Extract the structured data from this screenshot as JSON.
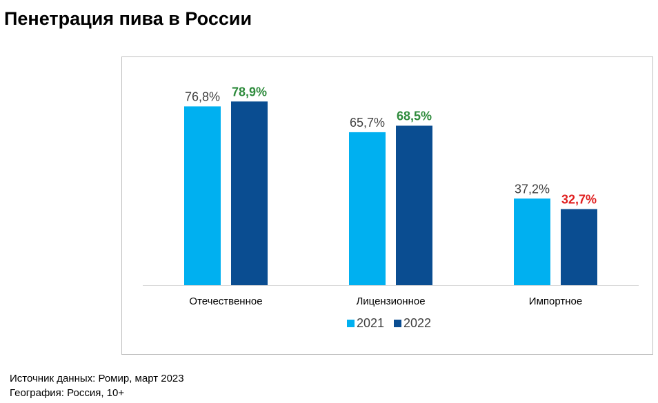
{
  "title": "Пенетрация пива в России",
  "chart_data": {
    "type": "bar",
    "categories": [
      "Отечественное",
      "Лицензионное",
      "Импортное"
    ],
    "series": [
      {
        "name": "2021",
        "color": "#00b0f0",
        "values": [
          76.8,
          65.7,
          37.2
        ],
        "labels": [
          "76,8%",
          "65,7%",
          "37,2%"
        ],
        "label_colors": [
          "#404040",
          "#404040",
          "#404040"
        ],
        "label_bold": false
      },
      {
        "name": "2022",
        "color": "#0a4d91",
        "values": [
          78.9,
          68.5,
          32.7
        ],
        "labels": [
          "78,9%",
          "68,5%",
          "32,7%"
        ],
        "label_colors": [
          "#2e8b3c",
          "#2e8b3c",
          "#e02020"
        ],
        "label_bold": true
      }
    ],
    "ylim": [
      0,
      100
    ],
    "grid": false,
    "legend_position": "bottom"
  },
  "footer": {
    "source": "Источник данных:  Ромир, март 2023",
    "geography": "География: Россия, 10+"
  }
}
